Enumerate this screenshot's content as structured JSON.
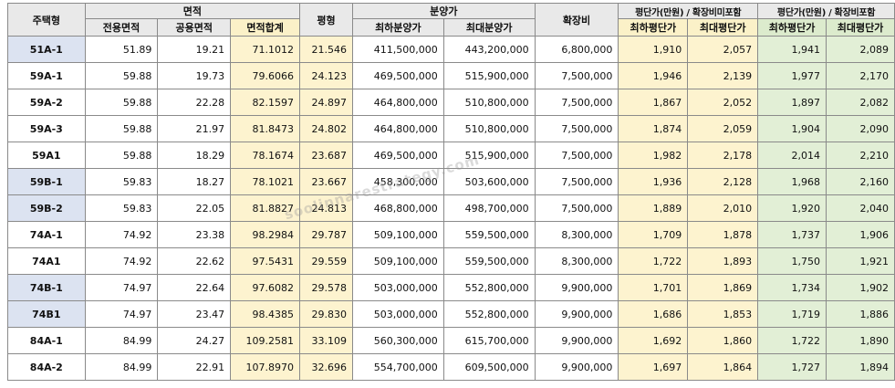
{
  "headers": {
    "type": "주택형",
    "area": "면적",
    "exclusive": "전용면적",
    "common": "공용면적",
    "area_sum": "면적합계",
    "pyeong": "평형",
    "sale_price": "분양가",
    "min_price": "최하분양가",
    "max_price": "최대분양가",
    "expansion": "확장비",
    "per_pyeong_excl": "평단가(만원) / 확장비미포함",
    "per_pyeong_incl": "평단가(만원) / 확장비포함",
    "min_per_pyeong": "최하평단가",
    "max_per_pyeong": "최대평단가"
  },
  "rows": [
    {
      "type": "51A-1",
      "exclusive": "51.89",
      "common": "19.21",
      "sum": "71.1012",
      "pyeong": "21.546",
      "min": "411,500,000",
      "max": "443,200,000",
      "exp": "6,800,000",
      "min1": "1,910",
      "max1": "2,057",
      "min2": "1,941",
      "max2": "2,089",
      "highlight": true
    },
    {
      "type": "59A-1",
      "exclusive": "59.88",
      "common": "19.73",
      "sum": "79.6066",
      "pyeong": "24.123",
      "min": "469,500,000",
      "max": "515,900,000",
      "exp": "7,500,000",
      "min1": "1,946",
      "max1": "2,139",
      "min2": "1,977",
      "max2": "2,170",
      "highlight": false
    },
    {
      "type": "59A-2",
      "exclusive": "59.88",
      "common": "22.28",
      "sum": "82.1597",
      "pyeong": "24.897",
      "min": "464,800,000",
      "max": "510,800,000",
      "exp": "7,500,000",
      "min1": "1,867",
      "max1": "2,052",
      "min2": "1,897",
      "max2": "2,082",
      "highlight": false
    },
    {
      "type": "59A-3",
      "exclusive": "59.88",
      "common": "21.97",
      "sum": "81.8473",
      "pyeong": "24.802",
      "min": "464,800,000",
      "max": "510,800,000",
      "exp": "7,500,000",
      "min1": "1,874",
      "max1": "2,059",
      "min2": "1,904",
      "max2": "2,090",
      "highlight": false
    },
    {
      "type": "59A1",
      "exclusive": "59.88",
      "common": "18.29",
      "sum": "78.1674",
      "pyeong": "23.687",
      "min": "469,500,000",
      "max": "515,900,000",
      "exp": "7,500,000",
      "min1": "1,982",
      "max1": "2,178",
      "min2": "2,014",
      "max2": "2,210",
      "highlight": false
    },
    {
      "type": "59B-1",
      "exclusive": "59.83",
      "common": "18.27",
      "sum": "78.1021",
      "pyeong": "23.667",
      "min": "458,300,000",
      "max": "503,600,000",
      "exp": "7,500,000",
      "min1": "1,936",
      "max1": "2,128",
      "min2": "1,968",
      "max2": "2,160",
      "highlight": true
    },
    {
      "type": "59B-2",
      "exclusive": "59.83",
      "common": "22.05",
      "sum": "81.8827",
      "pyeong": "24.813",
      "min": "468,800,000",
      "max": "498,700,000",
      "exp": "7,500,000",
      "min1": "1,889",
      "max1": "2,010",
      "min2": "1,920",
      "max2": "2,040",
      "highlight": true
    },
    {
      "type": "74A-1",
      "exclusive": "74.92",
      "common": "23.38",
      "sum": "98.2984",
      "pyeong": "29.787",
      "min": "509,100,000",
      "max": "559,500,000",
      "exp": "8,300,000",
      "min1": "1,709",
      "max1": "1,878",
      "min2": "1,737",
      "max2": "1,906",
      "highlight": false
    },
    {
      "type": "74A1",
      "exclusive": "74.92",
      "common": "22.62",
      "sum": "97.5431",
      "pyeong": "29.559",
      "min": "509,100,000",
      "max": "559,500,000",
      "exp": "8,300,000",
      "min1": "1,722",
      "max1": "1,893",
      "min2": "1,750",
      "max2": "1,921",
      "highlight": false
    },
    {
      "type": "74B-1",
      "exclusive": "74.97",
      "common": "22.64",
      "sum": "97.6082",
      "pyeong": "29.578",
      "min": "503,000,000",
      "max": "552,800,000",
      "exp": "9,900,000",
      "min1": "1,701",
      "max1": "1,869",
      "min2": "1,734",
      "max2": "1,902",
      "highlight": true
    },
    {
      "type": "74B1",
      "exclusive": "74.97",
      "common": "23.47",
      "sum": "98.4385",
      "pyeong": "29.830",
      "min": "503,000,000",
      "max": "552,800,000",
      "exp": "9,900,000",
      "min1": "1,686",
      "max1": "1,853",
      "min2": "1,719",
      "max2": "1,886",
      "highlight": true
    },
    {
      "type": "84A-1",
      "exclusive": "84.99",
      "common": "24.27",
      "sum": "109.2581",
      "pyeong": "33.109",
      "min": "560,300,000",
      "max": "615,700,000",
      "exp": "9,900,000",
      "min1": "1,692",
      "max1": "1,860",
      "min2": "1,722",
      "max2": "1,890",
      "highlight": false
    },
    {
      "type": "84A-2",
      "exclusive": "84.99",
      "common": "22.91",
      "sum": "107.8970",
      "pyeong": "32.696",
      "min": "554,700,000",
      "max": "609,500,000",
      "exp": "9,900,000",
      "min1": "1,697",
      "max1": "1,864",
      "min2": "1,727",
      "max2": "1,894",
      "highlight": false
    }
  ],
  "watermark": "soolinnarestrategy.com"
}
